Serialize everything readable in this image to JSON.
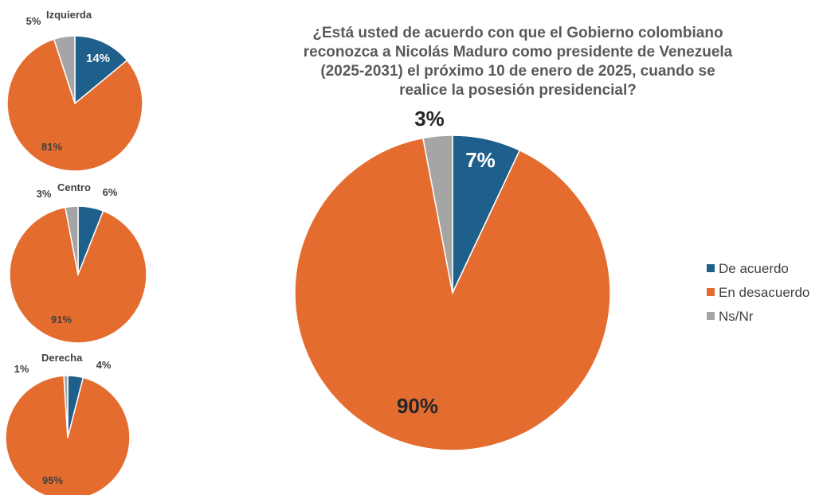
{
  "chart_data": [
    {
      "type": "pie",
      "title_lines": [
        "¿Está usted de acuerdo con que el Gobierno colombiano",
        "reconozca a Nicolás Maduro como presidente de Venezuela",
        "(2025-2031) el próximo 10 de enero de 2025, cuando se",
        "realice la posesión presidencial?"
      ],
      "labels": [
        "De acuerdo",
        "En desacuerdo",
        "Ns/Nr"
      ],
      "values": [
        7,
        90,
        3
      ],
      "value_labels": [
        "7%",
        "90%",
        "3%"
      ],
      "colors": [
        "#1f5f8b",
        "#e46c2f",
        "#a5a5a5"
      ],
      "legend": "right"
    },
    {
      "type": "pie",
      "title": "Izquierda",
      "labels": [
        "De acuerdo",
        "En desacuerdo",
        "Ns/Nr"
      ],
      "values": [
        14,
        81,
        5
      ],
      "value_labels": [
        "14%",
        "81%",
        "5%"
      ],
      "colors": [
        "#1f5f8b",
        "#e46c2f",
        "#a5a5a5"
      ]
    },
    {
      "type": "pie",
      "title": "Centro",
      "labels": [
        "De acuerdo",
        "En desacuerdo",
        "Ns/Nr"
      ],
      "values": [
        6,
        91,
        3
      ],
      "value_labels": [
        "6%",
        "91%",
        "3%"
      ],
      "colors": [
        "#1f5f8b",
        "#e46c2f",
        "#a5a5a5"
      ]
    },
    {
      "type": "pie",
      "title": "Derecha",
      "labels": [
        "De acuerdo",
        "En desacuerdo",
        "Ns/Nr"
      ],
      "values": [
        4,
        95,
        1
      ],
      "value_labels": [
        "4%",
        "95%",
        "1%"
      ],
      "colors": [
        "#1f5f8b",
        "#e46c2f",
        "#a5a5a5"
      ]
    }
  ]
}
